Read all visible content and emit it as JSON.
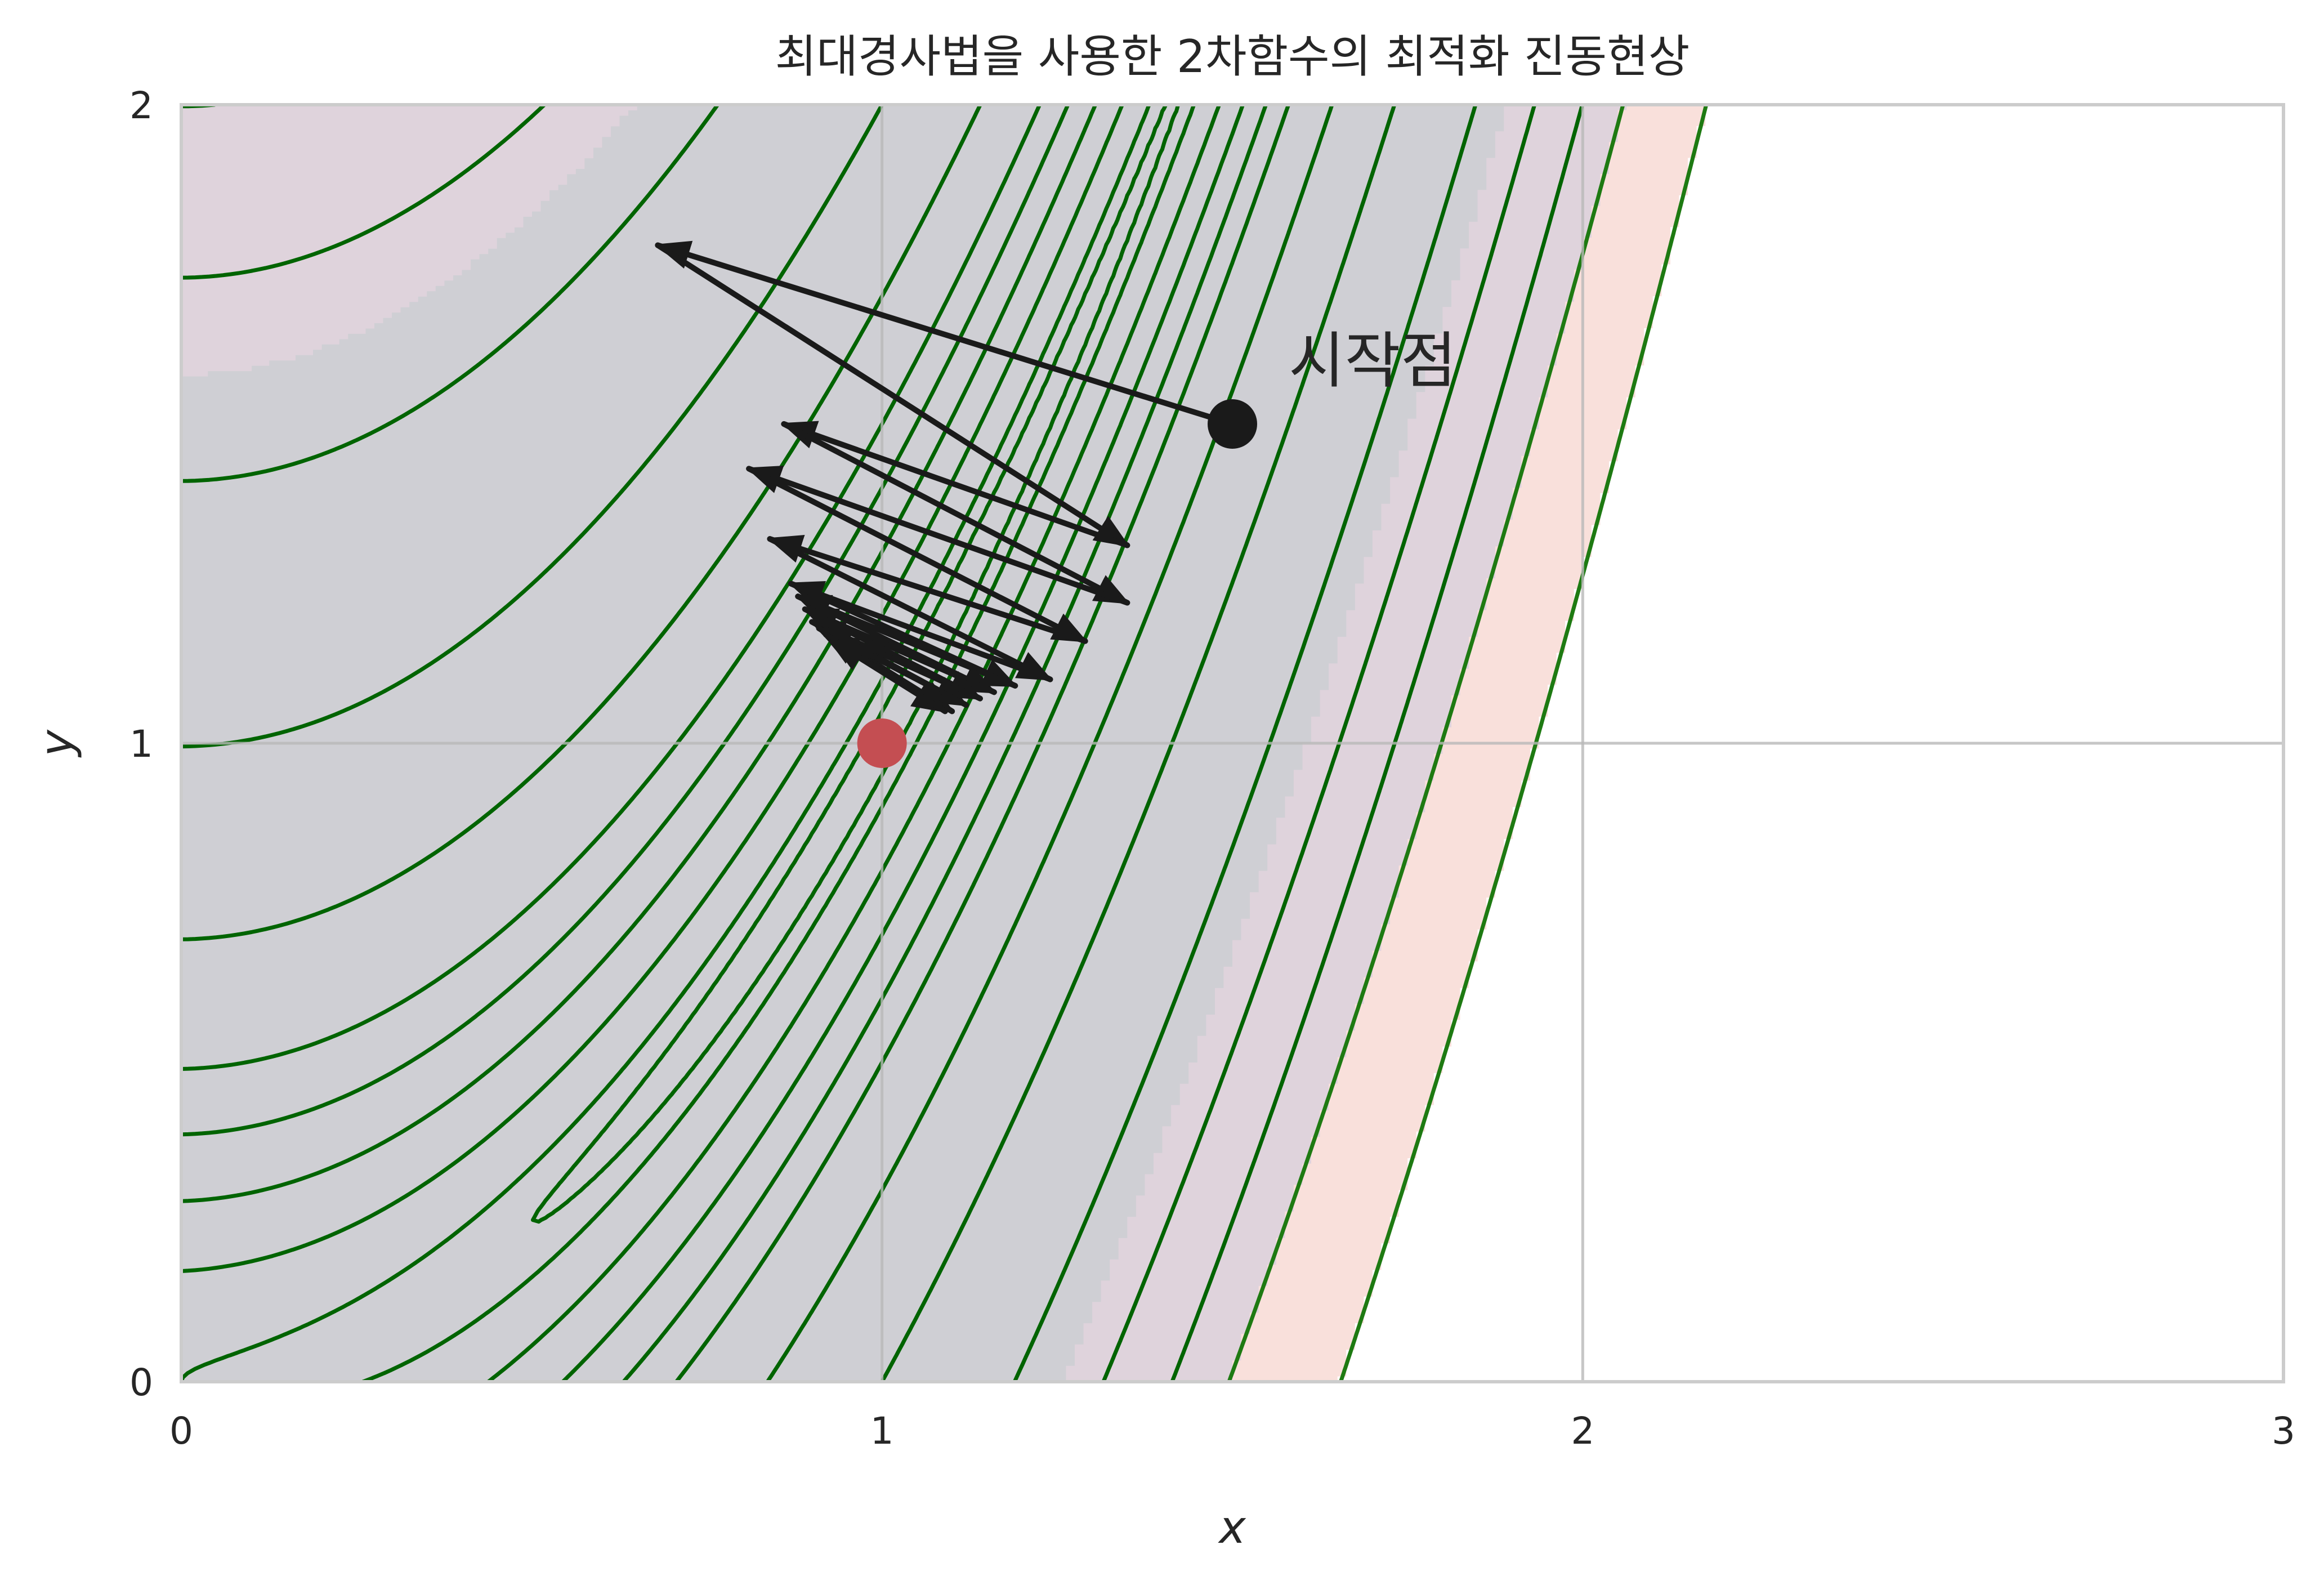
{
  "chart_data": {
    "type": "contour",
    "title": "최대경사법을 사용한 2차함수의 최적화 진동현상",
    "xlabel": "x",
    "ylabel": "y",
    "xlim": [
      0,
      3
    ],
    "ylim": [
      0,
      2
    ],
    "xticks": [
      0,
      1,
      2,
      3
    ],
    "yticks": [
      0,
      1,
      2
    ],
    "grid": true,
    "colors": {
      "filled_levels": [
        "#cfcfd4",
        "#dfd3dc",
        "#f9e0db",
        "#ffffff"
      ],
      "contour_line": "#006400",
      "outer_contour_line": "#1e7a12",
      "arrow": "#1a1a1a",
      "start_marker": "#1a1a1a",
      "minimum_marker": "#c44e52",
      "grid": "#b9b9b9"
    },
    "start_point": {
      "x": 1.5,
      "y": 1.5,
      "label": "시작점"
    },
    "minimum_point": {
      "x": 1.0,
      "y": 1.0
    },
    "path": [
      [
        1.5,
        1.5
      ],
      [
        0.68,
        1.78
      ],
      [
        1.35,
        1.31
      ],
      [
        0.86,
        1.5
      ],
      [
        1.35,
        1.22
      ],
      [
        0.81,
        1.43
      ],
      [
        1.29,
        1.16
      ],
      [
        0.84,
        1.32
      ],
      [
        1.24,
        1.1
      ],
      [
        0.87,
        1.25
      ],
      [
        1.19,
        1.09
      ],
      [
        0.88,
        1.23
      ],
      [
        1.16,
        1.08
      ],
      [
        0.89,
        1.21
      ],
      [
        1.14,
        1.07
      ],
      [
        0.9,
        1.19
      ],
      [
        1.12,
        1.06
      ],
      [
        0.91,
        1.18
      ],
      [
        1.1,
        1.05
      ],
      [
        0.92,
        1.17
      ],
      [
        1.09,
        1.05
      ],
      [
        0.93,
        1.16
      ]
    ]
  }
}
